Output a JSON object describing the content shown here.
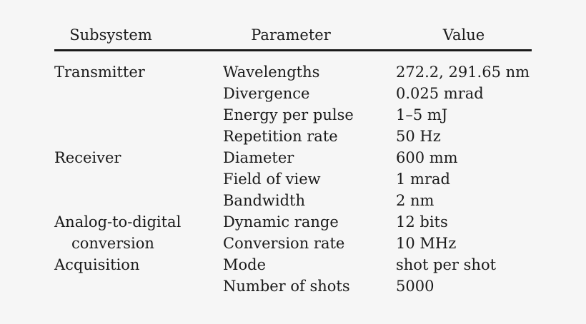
{
  "table": {
    "headers": {
      "subsystem": "Subsystem",
      "parameter": "Parameter",
      "value": "Value"
    },
    "rows": [
      {
        "subsystem": "Transmitter",
        "parameter": "Wavelengths",
        "value": "272.2, 291.65 nm"
      },
      {
        "subsystem": "",
        "parameter": "Divergence",
        "value": "0.025 mrad"
      },
      {
        "subsystem": "",
        "parameter": "Energy per pulse",
        "value": "1–5 mJ"
      },
      {
        "subsystem": "",
        "parameter": "Repetition rate",
        "value": "50 Hz"
      },
      {
        "subsystem": "Receiver",
        "parameter": "Diameter",
        "value": "600 mm"
      },
      {
        "subsystem": "",
        "parameter": "Field of view",
        "value": "1 mrad"
      },
      {
        "subsystem": "",
        "parameter": "Bandwidth",
        "value": "2 nm"
      },
      {
        "subsystem": "Analog-to-digital",
        "parameter": "Dynamic range",
        "value": "12 bits"
      },
      {
        "subsystem": "conversion",
        "parameter": "Conversion rate",
        "value": "10 MHz"
      },
      {
        "subsystem": "Acquisition",
        "parameter": "Mode",
        "value": "shot per shot"
      },
      {
        "subsystem": "",
        "parameter": "Number of shots",
        "value": "5000"
      }
    ]
  }
}
